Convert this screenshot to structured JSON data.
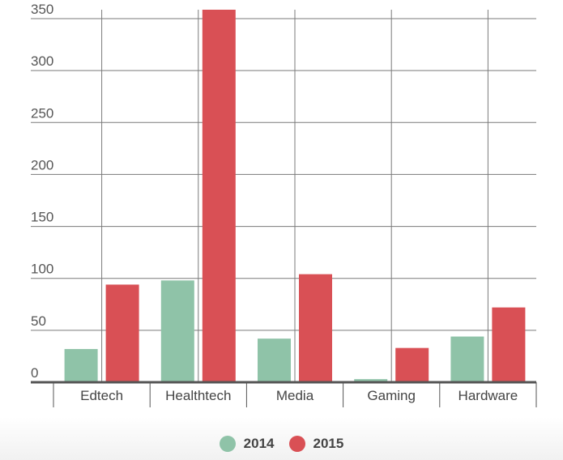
{
  "chart_data": {
    "type": "bar",
    "categories": [
      "Edtech",
      "Healthtech",
      "Media",
      "Gaming",
      "Hardware"
    ],
    "series": [
      {
        "name": "2014",
        "values": [
          32,
          98,
          42,
          3,
          44
        ],
        "color": "#8fc3a8"
      },
      {
        "name": "2015",
        "values": [
          94,
          360,
          104,
          33,
          72
        ],
        "color": "#d95055"
      }
    ],
    "title": "",
    "xlabel": "",
    "ylabel": "",
    "ylim": [
      0,
      350
    ],
    "yticks": [
      "0",
      "50",
      "100",
      "150",
      "200",
      "250",
      "300",
      "350"
    ],
    "grid": true,
    "legend": "bottom-center"
  }
}
